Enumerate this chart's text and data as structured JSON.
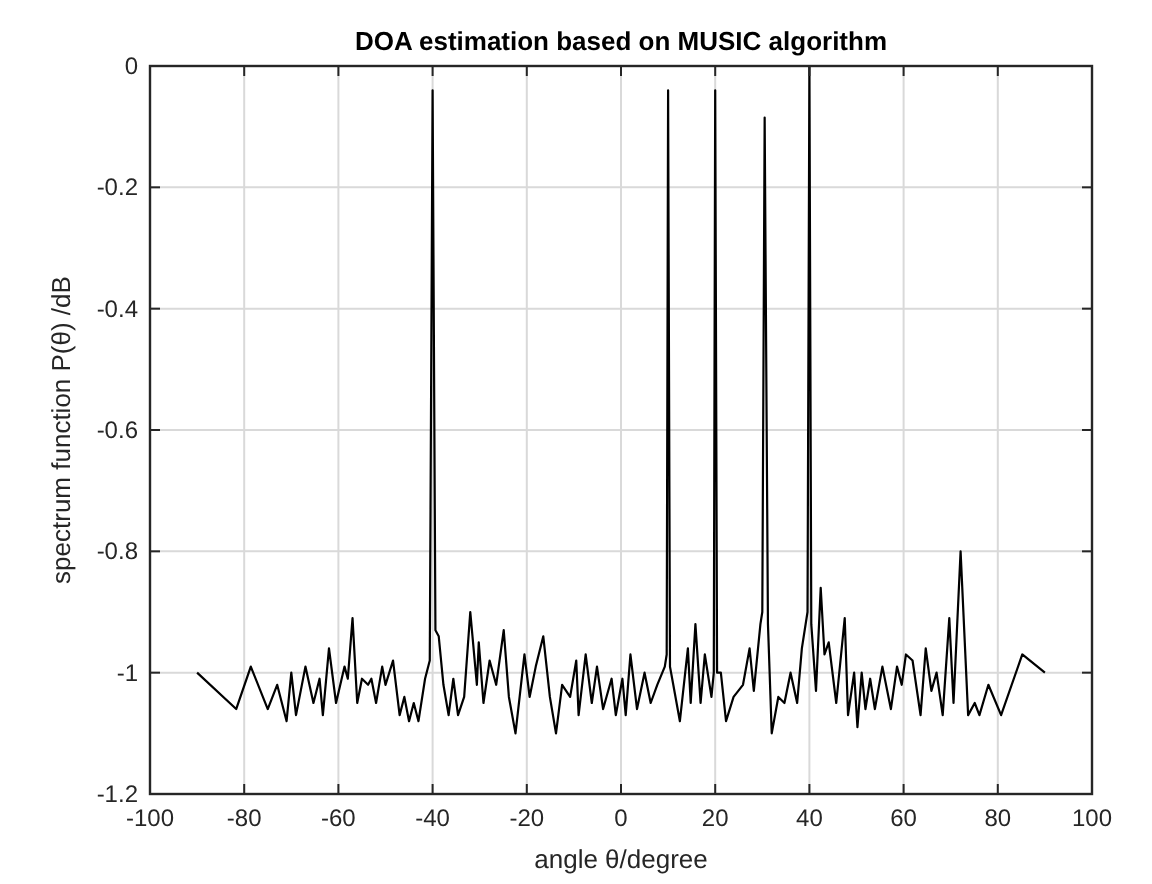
{
  "chart_data": {
    "type": "line",
    "title": "DOA estimation based on MUSIC algorithm",
    "xlabel": "angle θ/degree",
    "ylabel": "spectrum function P(θ) /dB",
    "xlim": [
      -100,
      100
    ],
    "ylim": [
      -1.2,
      0
    ],
    "xticks": [
      -100,
      -80,
      -60,
      -40,
      -20,
      0,
      20,
      40,
      60,
      80,
      100
    ],
    "yticks": [
      -1.2,
      -1,
      -0.8,
      -0.6,
      -0.4,
      -0.2,
      0
    ],
    "grid": true,
    "marker": "none",
    "line_style": "solid",
    "series": [
      {
        "color": "#000000",
        "x": [
          -90,
          -81.7,
          -78.6,
          -75,
          -73,
          -71,
          -70,
          -69,
          -67,
          -65.3,
          -64,
          -63.3,
          -62,
          -60.5,
          -58.7,
          -58,
          -57,
          -56,
          -55,
          -53.7,
          -53,
          -52,
          -50.7,
          -50,
          -48.4,
          -47,
          -46,
          -45,
          -44,
          -43,
          -41.6,
          -40.6,
          -40,
          -39.4,
          -38.7,
          -37.7,
          -36.6,
          -35.6,
          -34.6,
          -33.3,
          -32,
          -30.6,
          -30.2,
          -29.2,
          -27.9,
          -26.5,
          -24.9,
          -23.8,
          -22.4,
          -20.5,
          -19.4,
          -18.1,
          -16.5,
          -15.1,
          -13.8,
          -12.5,
          -10.8,
          -9.5,
          -9,
          -7.5,
          -6.2,
          -5.1,
          -3.8,
          -2,
          -1.1,
          0.3,
          1,
          2,
          3.4,
          5,
          6.3,
          7.7,
          9.3,
          9.7,
          10,
          10.4,
          11.1,
          12.5,
          14.2,
          14.8,
          15.8,
          16.9,
          17.8,
          19.2,
          19.7,
          20,
          20.4,
          21.2,
          22.3,
          23.9,
          25.9,
          27.3,
          28.2,
          29.6,
          30,
          30.5,
          31.2,
          32,
          33.4,
          34.7,
          36,
          37.4,
          38.4,
          39.6,
          40,
          40.4,
          41.4,
          42.4,
          43.2,
          44.1,
          45.7,
          47.5,
          48.2,
          49.5,
          50.2,
          51.1,
          51.9,
          52.9,
          53.9,
          55.5,
          57.3,
          58.6,
          59.6,
          60.5,
          61.9,
          63.6,
          64.7,
          65.9,
          67,
          68.3,
          69.7,
          70.6,
          72.1,
          73.7,
          75.1,
          76.1,
          78,
          80.7,
          85.2,
          90
        ],
        "values": [
          -1,
          -1.06,
          -0.99,
          -1.06,
          -1.02,
          -1.08,
          -1,
          -1.07,
          -0.99,
          -1.05,
          -1.01,
          -1.07,
          -0.96,
          -1.05,
          -0.99,
          -1.01,
          -0.91,
          -1.05,
          -1.01,
          -1.02,
          -1.01,
          -1.05,
          -0.99,
          -1.02,
          -0.98,
          -1.07,
          -1.04,
          -1.08,
          -1.05,
          -1.08,
          -1.01,
          -0.98,
          -0.04,
          -0.93,
          -0.94,
          -1.02,
          -1.07,
          -1.01,
          -1.07,
          -1.04,
          -0.9,
          -1.02,
          -0.95,
          -1.05,
          -0.98,
          -1.02,
          -0.93,
          -1.04,
          -1.1,
          -0.97,
          -1.04,
          -0.99,
          -0.94,
          -1.04,
          -1.1,
          -1.02,
          -1.04,
          -0.98,
          -1.07,
          -0.97,
          -1.05,
          -0.99,
          -1.06,
          -1.01,
          -1.07,
          -1.01,
          -1.07,
          -0.97,
          -1.06,
          -1,
          -1.05,
          -1.02,
          -0.99,
          -0.97,
          -0.04,
          -0.99,
          -1.02,
          -1.08,
          -0.96,
          -1.05,
          -0.92,
          -1.05,
          -0.97,
          -1.04,
          -1,
          -0.04,
          -1.0,
          -1,
          -1.08,
          -1.04,
          -1.02,
          -0.96,
          -1.03,
          -0.92,
          -0.9,
          -0.085,
          -0.92,
          -1.1,
          -1.04,
          -1.05,
          -1,
          -1.05,
          -0.96,
          -0.9,
          0,
          -0.92,
          -1.03,
          -0.86,
          -0.97,
          -0.95,
          -1.05,
          -0.91,
          -1.07,
          -1,
          -1.09,
          -1,
          -1.06,
          -1.01,
          -1.06,
          -0.99,
          -1.06,
          -0.99,
          -1.02,
          -0.97,
          -0.98,
          -1.07,
          -0.96,
          -1.03,
          -1,
          -1.07,
          -0.91,
          -1.05,
          -0.8,
          -1.07,
          -1.05,
          -1.07,
          -1.02,
          -1.07,
          -0.97,
          -1
        ]
      }
    ]
  }
}
